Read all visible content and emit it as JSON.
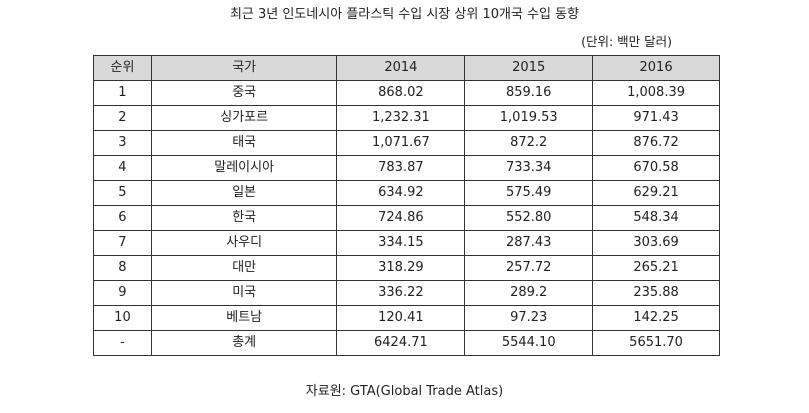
{
  "title": "최근 3년 인도네시아 플라스틱 수입 시장 상위 10개국 수입 동향",
  "unit": "(단위: 백만 달러)",
  "table": {
    "headers": [
      "순위",
      "국가",
      "2014",
      "2015",
      "2016"
    ],
    "rows": [
      {
        "rank": "1",
        "country": "중국",
        "y2014": "868.02",
        "y2015": "859.16",
        "y2016": "1,008.39"
      },
      {
        "rank": "2",
        "country": "싱가포르",
        "y2014": "1,232.31",
        "y2015": "1,019.53",
        "y2016": "971.43"
      },
      {
        "rank": "3",
        "country": "태국",
        "y2014": "1,071.67",
        "y2015": "872.2",
        "y2016": "876.72"
      },
      {
        "rank": "4",
        "country": "말레이시아",
        "y2014": "783.87",
        "y2015": "733.34",
        "y2016": "670.58"
      },
      {
        "rank": "5",
        "country": "일본",
        "y2014": "634.92",
        "y2015": "575.49",
        "y2016": "629.21"
      },
      {
        "rank": "6",
        "country": "한국",
        "y2014": "724.86",
        "y2015": "552.80",
        "y2016": "548.34"
      },
      {
        "rank": "7",
        "country": "사우디",
        "y2014": "334.15",
        "y2015": "287.43",
        "y2016": "303.69"
      },
      {
        "rank": "8",
        "country": "대만",
        "y2014": "318.29",
        "y2015": "257.72",
        "y2016": "265.21"
      },
      {
        "rank": "9",
        "country": "미국",
        "y2014": "336.22",
        "y2015": "289.2",
        "y2016": "235.88"
      },
      {
        "rank": "10",
        "country": "베트남",
        "y2014": "120.41",
        "y2015": "97.23",
        "y2016": "142.25"
      },
      {
        "rank": "-",
        "country": "총계",
        "y2014": "6424.71",
        "y2015": "5544.10",
        "y2016": "5651.70"
      }
    ]
  },
  "source": "자료원: GTA(Global Trade Atlas)",
  "colors": {
    "header_bg": "#d9d9d9",
    "border": "#333333",
    "text": "#222222"
  }
}
